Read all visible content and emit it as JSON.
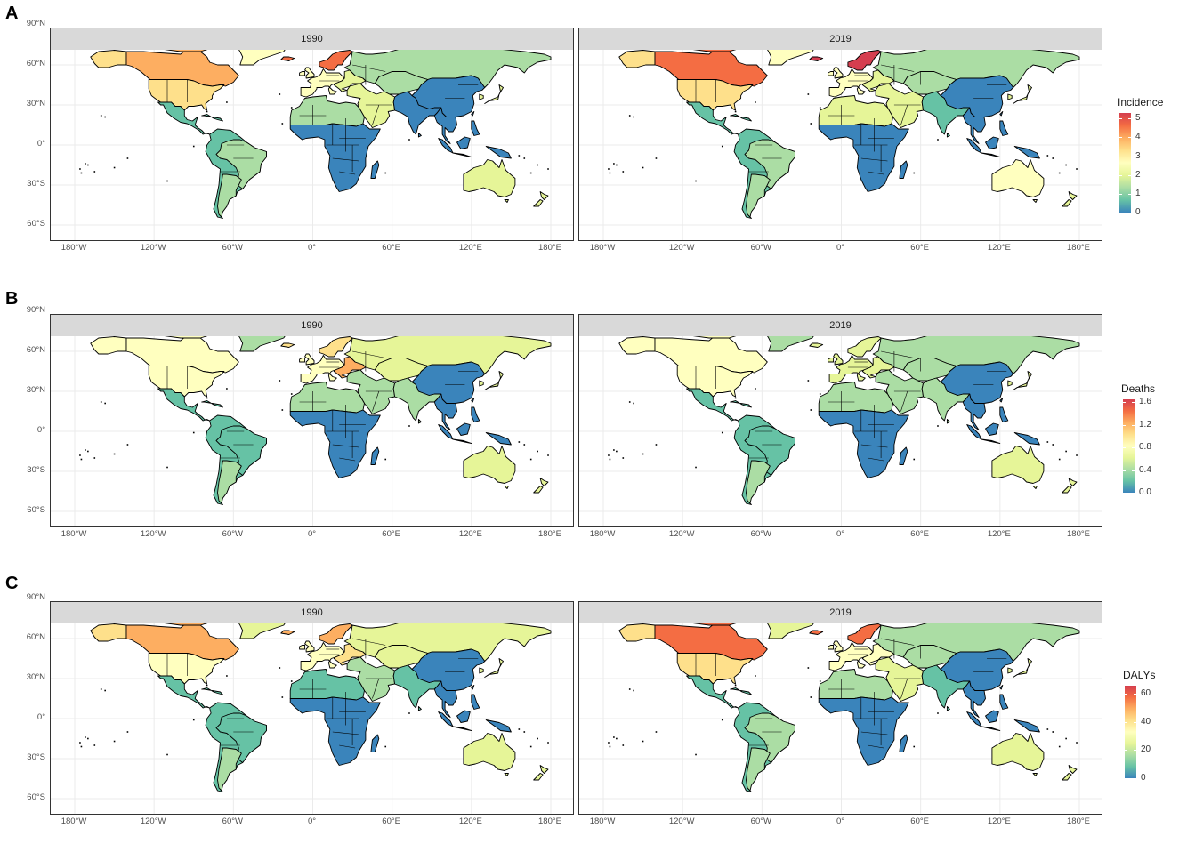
{
  "figure": {
    "rows": [
      {
        "letter": "A",
        "panels": [
          {
            "year": "1990"
          },
          {
            "year": "2019"
          }
        ],
        "legend": {
          "title": "Incidence",
          "ticks": [
            "5",
            "4",
            "3",
            "2",
            "1",
            "0"
          ],
          "range": [
            0,
            5.3
          ]
        }
      },
      {
        "letter": "B",
        "panels": [
          {
            "year": "1990"
          },
          {
            "year": "2019"
          }
        ],
        "legend": {
          "title": "Deaths",
          "ticks": [
            "1.6",
            "1.2",
            "0.8",
            "0.4",
            "0.0"
          ],
          "range": [
            0,
            1.65
          ]
        }
      },
      {
        "letter": "C",
        "panels": [
          {
            "year": "1990"
          },
          {
            "year": "2019"
          }
        ],
        "legend": {
          "title": "DALYs",
          "ticks": [
            "60",
            "40",
            "20",
            "0"
          ],
          "range": [
            0,
            66
          ]
        }
      }
    ],
    "y_axis_labels": [
      "90°N",
      "60°N",
      "30°N",
      "0°",
      "30°S",
      "60°S"
    ],
    "x_axis_labels": [
      "180°W",
      "120°W",
      "60°W",
      "0°",
      "60°E",
      "120°E",
      "180°E"
    ],
    "color_scale": [
      "#3a84bb",
      "#66c2a5",
      "#abdda4",
      "#e6f598",
      "#ffffbf",
      "#fee08b",
      "#fdae61",
      "#f46d43",
      "#d53e4f"
    ],
    "ocean_color": "#ffffff",
    "grid_color": "#ebebeb"
  }
}
